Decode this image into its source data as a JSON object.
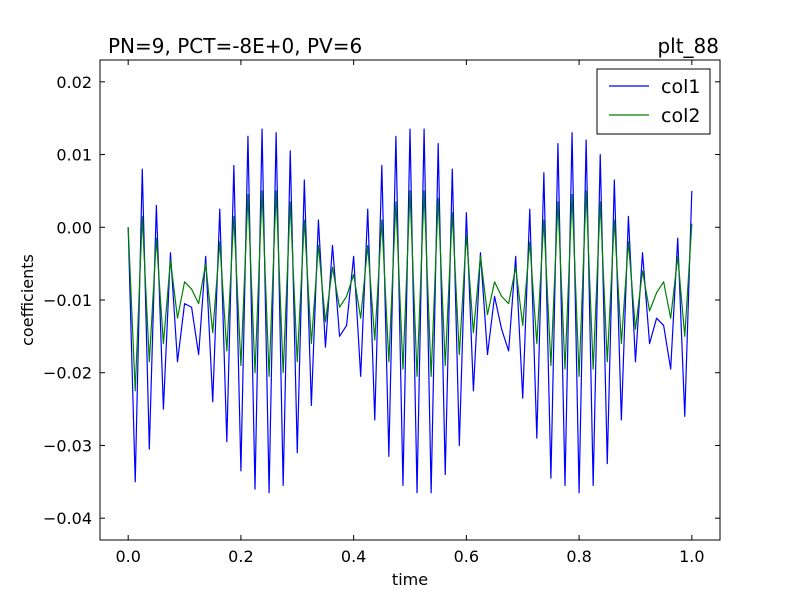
{
  "chart_data": {
    "type": "line",
    "title": "PN=9, PCT=-8E+0, PV=6",
    "title_right": "plt_88",
    "xlabel": "time",
    "ylabel": "coefficients",
    "xlim": [
      -0.05,
      1.05
    ],
    "ylim": [
      -0.043,
      0.023
    ],
    "xticks": [
      0.0,
      0.2,
      0.4,
      0.6,
      0.8,
      1.0
    ],
    "xtick_labels": [
      "0.0",
      "0.2",
      "0.4",
      "0.6",
      "0.8",
      "1.0"
    ],
    "yticks": [
      0.02,
      0.01,
      0.0,
      -0.01,
      -0.02,
      -0.03,
      -0.04
    ],
    "ytick_labels": [
      "0.02",
      "0.01",
      "0.00",
      "−0.01",
      "−0.02",
      "−0.03",
      "−0.04"
    ],
    "grid": false,
    "legend_position": "top-right",
    "series": [
      {
        "name": "col1",
        "color": "#0000ff",
        "x": [
          0.0,
          0.0125,
          0.025,
          0.0375,
          0.05,
          0.0625,
          0.075,
          0.0875,
          0.1,
          0.1125,
          0.125,
          0.1375,
          0.15,
          0.1625,
          0.175,
          0.1875,
          0.2,
          0.2125,
          0.225,
          0.2375,
          0.25,
          0.2625,
          0.275,
          0.2875,
          0.3,
          0.3125,
          0.325,
          0.3375,
          0.35,
          0.3625,
          0.375,
          0.3875,
          0.4,
          0.4125,
          0.425,
          0.4375,
          0.45,
          0.4625,
          0.475,
          0.4875,
          0.5,
          0.5125,
          0.525,
          0.5375,
          0.55,
          0.5625,
          0.575,
          0.5875,
          0.6,
          0.6125,
          0.625,
          0.6375,
          0.65,
          0.6625,
          0.675,
          0.6875,
          0.7,
          0.7125,
          0.725,
          0.7375,
          0.75,
          0.7625,
          0.775,
          0.7875,
          0.8,
          0.8125,
          0.825,
          0.8375,
          0.85,
          0.8625,
          0.875,
          0.8875,
          0.9,
          0.9125,
          0.925,
          0.9375,
          0.95,
          0.9625,
          0.975,
          0.9875,
          1.0
        ],
        "y": [
          0.0,
          -0.035,
          0.008,
          -0.0305,
          0.003,
          -0.025,
          -0.0035,
          -0.0185,
          -0.0105,
          -0.011,
          -0.0175,
          -0.004,
          -0.024,
          0.0025,
          -0.0295,
          0.0085,
          -0.0335,
          0.0125,
          -0.036,
          0.0135,
          -0.0365,
          0.013,
          -0.0355,
          0.0105,
          -0.031,
          0.0065,
          -0.0245,
          0.001,
          -0.0165,
          -0.0025,
          -0.015,
          -0.0135,
          -0.004,
          -0.0205,
          0.0025,
          -0.0265,
          0.0085,
          -0.0315,
          0.0125,
          -0.0355,
          0.0135,
          -0.0365,
          0.0135,
          -0.0365,
          0.0115,
          -0.034,
          0.008,
          -0.03,
          0.002,
          -0.0225,
          -0.0035,
          -0.0175,
          -0.0095,
          -0.014,
          -0.017,
          -0.004,
          -0.0235,
          0.0025,
          -0.029,
          0.0075,
          -0.0345,
          0.0115,
          -0.0355,
          0.013,
          -0.0365,
          0.012,
          -0.0355,
          0.01,
          -0.0325,
          0.0065,
          -0.0265,
          0.0015,
          -0.0185,
          -0.0035,
          -0.016,
          -0.0125,
          -0.0135,
          -0.0195,
          -0.0015,
          -0.026,
          0.005
        ]
      },
      {
        "name": "col2",
        "color": "#008000",
        "x": [
          0.0,
          0.0125,
          0.025,
          0.0375,
          0.05,
          0.0625,
          0.075,
          0.0875,
          0.1,
          0.1125,
          0.125,
          0.1375,
          0.15,
          0.1625,
          0.175,
          0.1875,
          0.2,
          0.2125,
          0.225,
          0.2375,
          0.25,
          0.2625,
          0.275,
          0.2875,
          0.3,
          0.3125,
          0.325,
          0.3375,
          0.35,
          0.3625,
          0.375,
          0.3875,
          0.4,
          0.4125,
          0.425,
          0.4375,
          0.45,
          0.4625,
          0.475,
          0.4875,
          0.5,
          0.5125,
          0.525,
          0.5375,
          0.55,
          0.5625,
          0.575,
          0.5875,
          0.6,
          0.6125,
          0.625,
          0.6375,
          0.65,
          0.6625,
          0.675,
          0.6875,
          0.7,
          0.7125,
          0.725,
          0.7375,
          0.75,
          0.7625,
          0.775,
          0.7875,
          0.8,
          0.8125,
          0.825,
          0.8375,
          0.85,
          0.8625,
          0.875,
          0.8875,
          0.9,
          0.9125,
          0.925,
          0.9375,
          0.95,
          0.9625,
          0.975,
          0.9875,
          1.0
        ],
        "y": [
          0.0,
          -0.0225,
          0.0015,
          -0.0185,
          -0.0015,
          -0.016,
          -0.0045,
          -0.0125,
          -0.0075,
          -0.0085,
          -0.0105,
          -0.005,
          -0.0145,
          -0.002,
          -0.017,
          0.0015,
          -0.019,
          0.0045,
          -0.02,
          0.005,
          -0.0205,
          0.005,
          -0.02,
          0.0035,
          -0.0185,
          0.001,
          -0.016,
          -0.0025,
          -0.013,
          -0.0055,
          -0.011,
          -0.0095,
          -0.0065,
          -0.0125,
          -0.0025,
          -0.0155,
          0.001,
          -0.0185,
          0.0035,
          -0.0195,
          0.005,
          -0.0205,
          0.005,
          -0.0205,
          0.004,
          -0.019,
          0.002,
          -0.0175,
          -0.001,
          -0.0145,
          -0.004,
          -0.012,
          -0.0075,
          -0.0095,
          -0.0105,
          -0.0055,
          -0.0135,
          -0.002,
          -0.016,
          0.001,
          -0.019,
          0.0035,
          -0.0195,
          0.0045,
          -0.0205,
          0.005,
          -0.0195,
          0.0035,
          -0.0185,
          0.001,
          -0.016,
          -0.002,
          -0.014,
          -0.006,
          -0.0115,
          -0.009,
          -0.0075,
          -0.0125,
          -0.004,
          -0.015,
          0.0005
        ]
      }
    ]
  }
}
